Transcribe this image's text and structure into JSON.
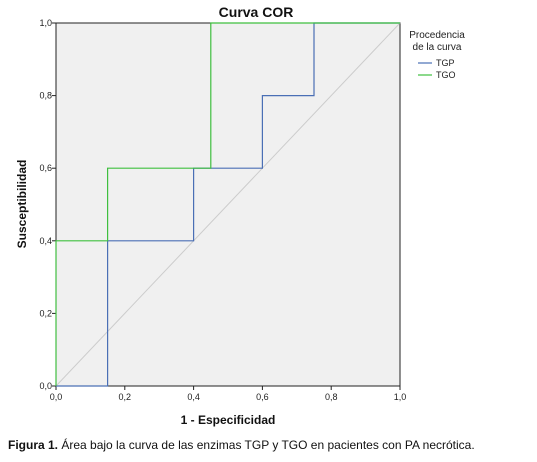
{
  "chart_data": {
    "type": "line",
    "title": "Curva COR",
    "xlabel": "1 - Especificidad",
    "ylabel": "Susceptibilidad",
    "xlim": [
      0,
      1
    ],
    "ylim": [
      0,
      1
    ],
    "x_ticks": [
      "0,0",
      "0,2",
      "0,4",
      "0,6",
      "0,8",
      "1,0"
    ],
    "y_ticks": [
      "0,0",
      "0,2",
      "0,4",
      "0,6",
      "0,8",
      "1,0"
    ],
    "legend": {
      "title_line1": "Procedencia",
      "title_line2": "de la curva",
      "placement": "top-right outside"
    },
    "series": [
      {
        "name": "TGP",
        "color": "#4a6fb5",
        "x": [
          0,
          0.15,
          0.15,
          0.4,
          0.4,
          0.6,
          0.6,
          0.75,
          0.75,
          1.0
        ],
        "y": [
          0,
          0,
          0.4,
          0.4,
          0.6,
          0.6,
          0.8,
          0.8,
          1.0,
          1.0
        ]
      },
      {
        "name": "TGO",
        "color": "#3fbf3f",
        "x": [
          0,
          0,
          0.15,
          0.15,
          0.45,
          0.45,
          1.0
        ],
        "y": [
          0,
          0.4,
          0.4,
          0.6,
          0.6,
          1.0,
          1.0
        ]
      }
    ],
    "reference_line": {
      "x": [
        0,
        1
      ],
      "y": [
        0,
        1
      ],
      "color": "#cccccc"
    },
    "plot_background": "#f0f0f0",
    "grid": false
  },
  "caption": {
    "label": "Figura 1.",
    "text": " Área bajo la curva de las enzimas TGP y TGO en pacientes con PA necrótica."
  }
}
